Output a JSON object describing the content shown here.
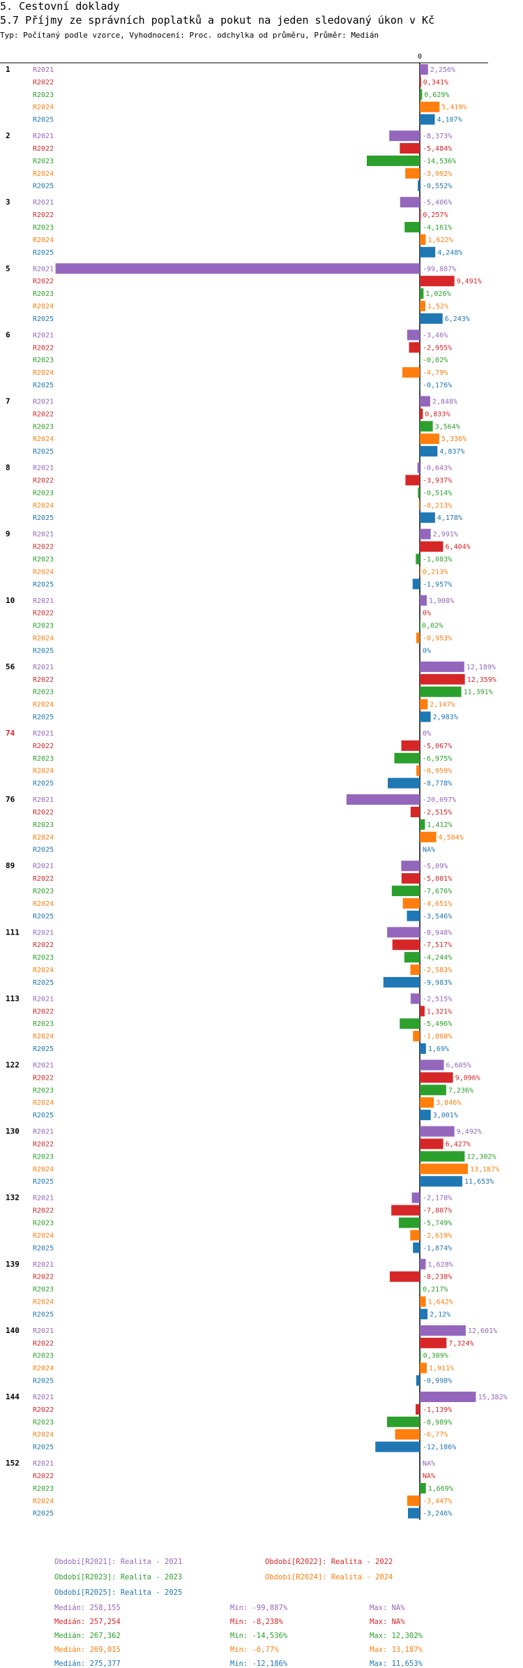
{
  "header": {
    "line1": "5. Cestovní doklady",
    "line2": "5.7 Příjmy ze správních poplatků a pokut na jeden sledovaný úkon v Kč",
    "line3": "Typ: Počítaný podle vzorce, Vyhodnocení: Proc. odchylka od průměru, Průměr: Medián"
  },
  "colors": {
    "R2021": "#9467bd",
    "R2022": "#d62728",
    "R2023": "#2ca02c",
    "R2024": "#ff7f0e",
    "R2025": "#1f77b4"
  },
  "chart_data": {
    "type": "bar",
    "orientation": "horizontal",
    "zero_label": "0",
    "xlim": [
      -99.887,
      15.382
    ],
    "series_names": [
      "R2021",
      "R2022",
      "R2023",
      "R2024",
      "R2025"
    ],
    "groups": [
      {
        "label": "1",
        "highlight": false,
        "values": [
          2.256,
          0.341,
          0.629,
          5.419,
          4.107
        ],
        "labels": [
          "2,256%",
          "0,341%",
          "0,629%",
          "5,419%",
          "4,107%"
        ]
      },
      {
        "label": "2",
        "highlight": false,
        "values": [
          -8.373,
          -5.484,
          -14.536,
          -3.992,
          -0.552
        ],
        "labels": [
          "-8,373%",
          "-5,484%",
          "-14,536%",
          "-3,992%",
          "-0,552%"
        ]
      },
      {
        "label": "3",
        "highlight": false,
        "values": [
          -5.406,
          0.257,
          -4.161,
          1.622,
          4.248
        ],
        "labels": [
          "-5,406%",
          "0,257%",
          "-4,161%",
          "1,622%",
          "4,248%"
        ]
      },
      {
        "label": "5",
        "highlight": false,
        "values": [
          -99.887,
          9.491,
          1.026,
          1.52,
          6.243
        ],
        "labels": [
          "-99,887%",
          "9,491%",
          "1,026%",
          "1,52%",
          "6,243%"
        ]
      },
      {
        "label": "6",
        "highlight": false,
        "values": [
          -3.46,
          -2.955,
          -0.02,
          -4.79,
          -0.176
        ],
        "labels": [
          "-3,46%",
          "-2,955%",
          "-0,02%",
          "-4,79%",
          "-0,176%"
        ]
      },
      {
        "label": "7",
        "highlight": false,
        "values": [
          2.848,
          0.833,
          3.564,
          5.336,
          4.837
        ],
        "labels": [
          "2,848%",
          "0,833%",
          "3,564%",
          "5,336%",
          "4,837%"
        ]
      },
      {
        "label": "8",
        "highlight": false,
        "values": [
          -0.643,
          -3.937,
          -0.514,
          -0.213,
          4.178
        ],
        "labels": [
          "-0,643%",
          "-3,937%",
          "-0,514%",
          "-0,213%",
          "4,178%"
        ]
      },
      {
        "label": "9",
        "highlight": false,
        "values": [
          2.991,
          6.404,
          -1.083,
          0.213,
          -1.957
        ],
        "labels": [
          "2,991%",
          "6,404%",
          "-1,083%",
          "0,213%",
          "-1,957%"
        ]
      },
      {
        "label": "10",
        "highlight": false,
        "values": [
          1.908,
          0,
          0.02,
          -0.953,
          0
        ],
        "labels": [
          "1,908%",
          "0%",
          "0,02%",
          "-0,953%",
          "0%"
        ]
      },
      {
        "label": "56",
        "highlight": false,
        "values": [
          12.189,
          12.359,
          11.391,
          2.147,
          2.983
        ],
        "labels": [
          "12,189%",
          "12,359%",
          "11,391%",
          "2,147%",
          "2,983%"
        ]
      },
      {
        "label": "74",
        "highlight": true,
        "values": [
          0,
          -5.067,
          -6.975,
          -0.959,
          -8.778
        ],
        "labels": [
          "0%",
          "-5,067%",
          "-6,975%",
          "-0,959%",
          "-8,778%"
        ]
      },
      {
        "label": "76",
        "highlight": false,
        "values": [
          -20.097,
          -2.515,
          1.412,
          4.504,
          null
        ],
        "labels": [
          "-20,097%",
          "-2,515%",
          "1,412%",
          "4,504%",
          "NA%"
        ]
      },
      {
        "label": "89",
        "highlight": false,
        "values": [
          -5.09,
          -5.001,
          -7.676,
          -4.651,
          -3.546
        ],
        "labels": [
          "-5,09%",
          "-5,001%",
          "-7,676%",
          "-4,651%",
          "-3,546%"
        ]
      },
      {
        "label": "111",
        "highlight": false,
        "values": [
          -8.948,
          -7.517,
          -4.244,
          -2.583,
          -9.983
        ],
        "labels": [
          "-8,948%",
          "-7,517%",
          "-4,244%",
          "-2,583%",
          "-9,983%"
        ]
      },
      {
        "label": "113",
        "highlight": false,
        "values": [
          -2.515,
          1.321,
          -5.496,
          -1.868,
          1.69
        ],
        "labels": [
          "-2,515%",
          "1,321%",
          "-5,496%",
          "-1,868%",
          "1,69%"
        ]
      },
      {
        "label": "122",
        "highlight": false,
        "values": [
          6.605,
          9.096,
          7.236,
          3.846,
          3.001
        ],
        "labels": [
          "6,605%",
          "9,096%",
          "7,236%",
          "3,846%",
          "3,001%"
        ]
      },
      {
        "label": "130",
        "highlight": false,
        "values": [
          9.492,
          6.427,
          12.302,
          13.187,
          11.653
        ],
        "labels": [
          "9,492%",
          "6,427%",
          "12,302%",
          "13,187%",
          "11,653%"
        ]
      },
      {
        "label": "132",
        "highlight": false,
        "values": [
          -2.178,
          -7.807,
          -5.749,
          -2.619,
          -1.874
        ],
        "labels": [
          "-2,178%",
          "-7,807%",
          "-5,749%",
          "-2,619%",
          "-1,874%"
        ]
      },
      {
        "label": "139",
        "highlight": false,
        "values": [
          1.628,
          -8.238,
          0.217,
          1.642,
          2.12
        ],
        "labels": [
          "1,628%",
          "-8,238%",
          "0,217%",
          "1,642%",
          "2,12%"
        ]
      },
      {
        "label": "140",
        "highlight": false,
        "values": [
          12.601,
          7.324,
          0.309,
          1.911,
          -0.998
        ],
        "labels": [
          "12,601%",
          "7,324%",
          "0,309%",
          "1,911%",
          "-0,998%"
        ]
      },
      {
        "label": "144",
        "highlight": false,
        "values": [
          15.382,
          -1.139,
          -8.989,
          -6.77,
          -12.186
        ],
        "labels": [
          "15,382%",
          "-1,139%",
          "-8,989%",
          "-6,77%",
          "-12,186%"
        ]
      },
      {
        "label": "152",
        "highlight": false,
        "values": [
          null,
          null,
          1.669,
          -3.447,
          -3.246
        ],
        "labels": [
          "NA%",
          "NA%",
          "1,669%",
          "-3,447%",
          "-3,246%"
        ]
      }
    ]
  },
  "legend": {
    "periods": [
      {
        "text": "Období[R2021]: Realita - 2021",
        "color": "#9467bd"
      },
      {
        "text": "Období[R2022]: Realita - 2022",
        "color": "#d62728"
      },
      {
        "text": "Období[R2023]: Realita - 2023",
        "color": "#2ca02c"
      },
      {
        "text": "Období[R2024]: Realita - 2024",
        "color": "#ff7f0e"
      },
      {
        "text": "Období[R2025]: Realita - 2025",
        "color": "#1f77b4"
      }
    ],
    "stats": [
      {
        "median": "Medián: 258,155",
        "min": "Min: -99,887%",
        "max": "Max: NA%",
        "color": "#9467bd"
      },
      {
        "median": "Medián: 257,254",
        "min": "Min: -8,238%",
        "max": "Max: NA%",
        "color": "#d62728"
      },
      {
        "median": "Medián: 267,362",
        "min": "Min: -14,536%",
        "max": "Max: 12,302%",
        "color": "#2ca02c"
      },
      {
        "median": "Medián: 269,015",
        "min": "Min: -6,77%",
        "max": "Max: 13,187%",
        "color": "#ff7f0e"
      },
      {
        "median": "Medián: 275,377",
        "min": "Min: -12,186%",
        "max": "Max: 11,653%",
        "color": "#1f77b4"
      }
    ]
  }
}
